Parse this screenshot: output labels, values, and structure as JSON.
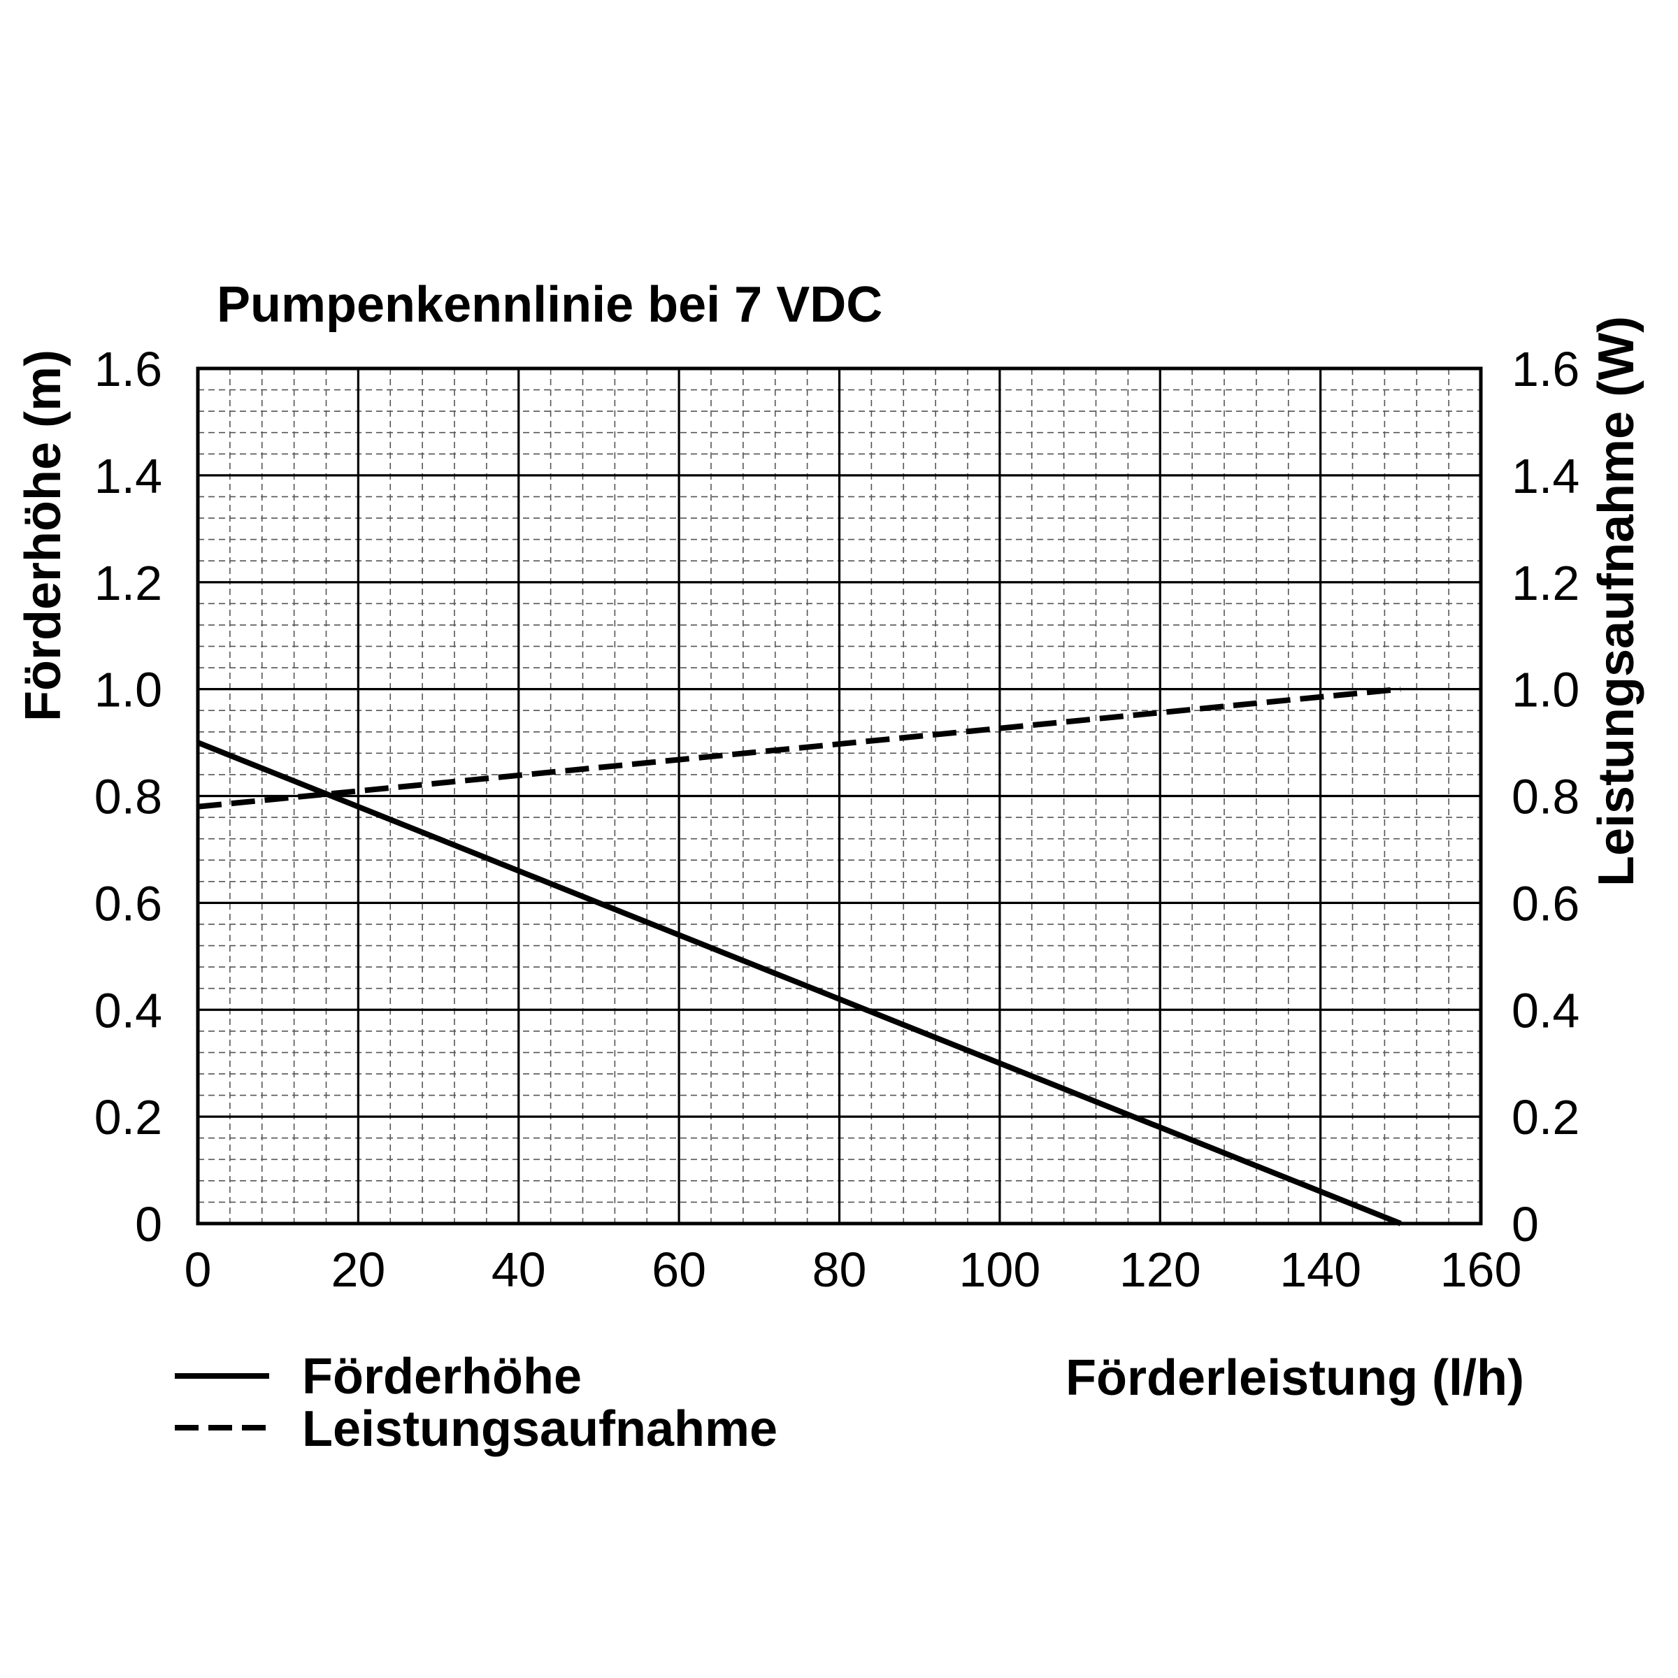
{
  "chart_data": {
    "type": "line",
    "title": "Pumpenkennlinie bei 7 VDC",
    "xlabel": "Förderleistung (l/h)",
    "ylabel_left": "Förderhöhe (m)",
    "ylabel_right": "Leistungsaufnahme (W)",
    "xlim": [
      0,
      160
    ],
    "ylim": [
      0,
      1.6
    ],
    "x_ticks": [
      "0",
      "20",
      "40",
      "60",
      "80",
      "100",
      "120",
      "140",
      "160"
    ],
    "y_ticks": [
      "0",
      "0.2",
      "0.4",
      "0.6",
      "0.8",
      "1.0",
      "1.2",
      "1.4",
      "1.6"
    ],
    "grid": true,
    "legend_position": "bottom-left",
    "series": [
      {
        "name": "Förderhöhe",
        "style": "solid",
        "axis": "left",
        "x": [
          0,
          150
        ],
        "y": [
          0.9,
          0
        ]
      },
      {
        "name": "Leistungsaufnahme",
        "style": "dashed",
        "axis": "right",
        "x": [
          0,
          150
        ],
        "y": [
          0.78,
          1.0
        ]
      }
    ]
  }
}
